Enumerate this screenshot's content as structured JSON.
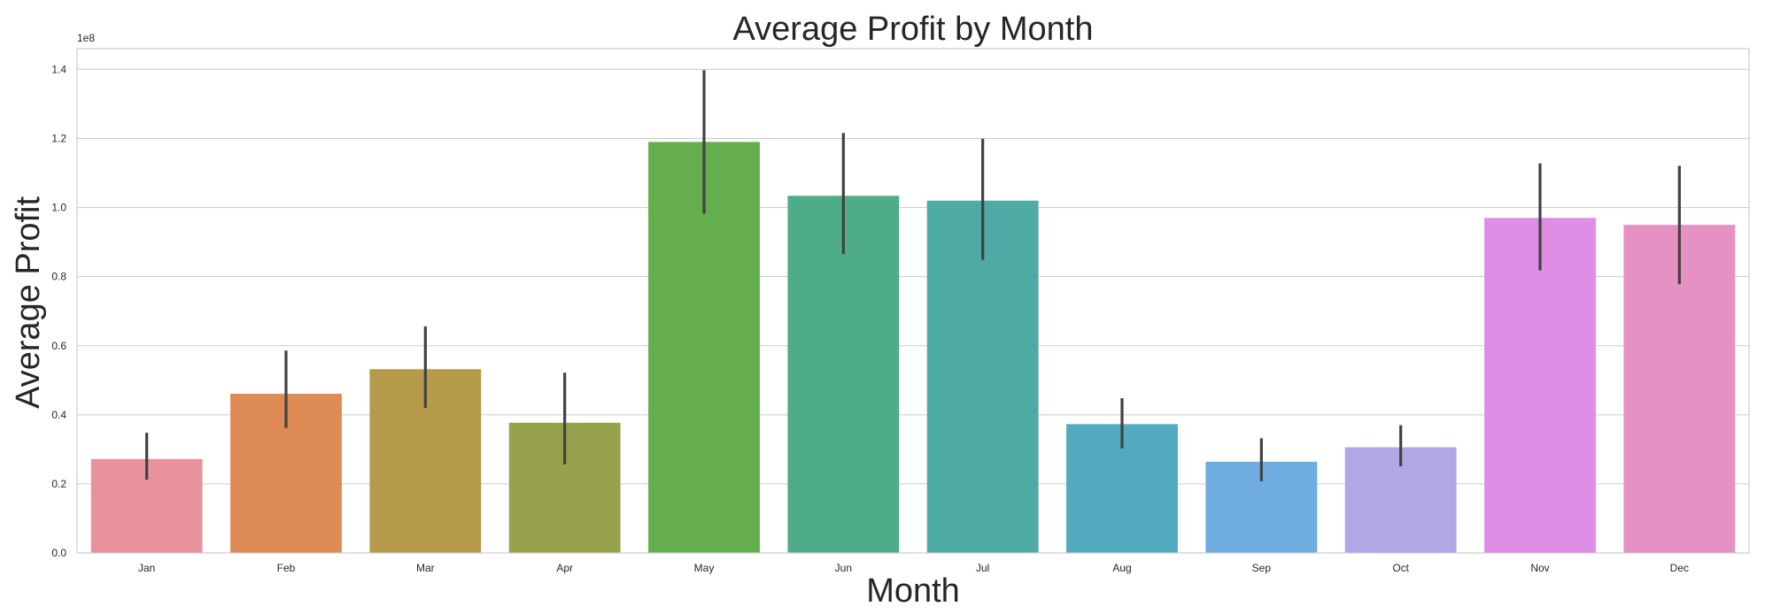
{
  "chart_data": {
    "type": "bar",
    "title": "Average Profit by Month",
    "xlabel": "Month",
    "ylabel": "Average Profit",
    "y_offset_label": "1e8",
    "categories": [
      "Jan",
      "Feb",
      "Mar",
      "Apr",
      "May",
      "Jun",
      "Jul",
      "Aug",
      "Sep",
      "Oct",
      "Nov",
      "Dec"
    ],
    "values": [
      0.272,
      0.461,
      0.532,
      0.377,
      1.19,
      1.034,
      1.02,
      0.373,
      0.264,
      0.306,
      0.97,
      0.95
    ],
    "ci_low": [
      0.212,
      0.362,
      0.42,
      0.256,
      0.982,
      0.865,
      0.848,
      0.303,
      0.208,
      0.251,
      0.818,
      0.778
    ],
    "ci_high": [
      0.348,
      0.586,
      0.656,
      0.522,
      1.398,
      1.216,
      1.199,
      0.448,
      0.332,
      0.37,
      1.128,
      1.121
    ],
    "value_scale": "1e8",
    "ylim": [
      0,
      1.46
    ],
    "yticks": [
      0.0,
      0.2,
      0.4,
      0.6,
      0.8,
      1.0,
      1.2,
      1.4
    ],
    "ytick_labels": [
      "0.0",
      "0.2",
      "0.4",
      "0.6",
      "0.8",
      "1.0",
      "1.2",
      "1.4"
    ],
    "colors": [
      "#e8929e",
      "#df8b55",
      "#b59a4b",
      "#98a14c",
      "#64ae4d",
      "#4fac88",
      "#4eaaa4",
      "#52aabf",
      "#6fade0",
      "#b3a6e5",
      "#de8ee4",
      "#e691c4"
    ],
    "grid": true,
    "legend": "none"
  }
}
